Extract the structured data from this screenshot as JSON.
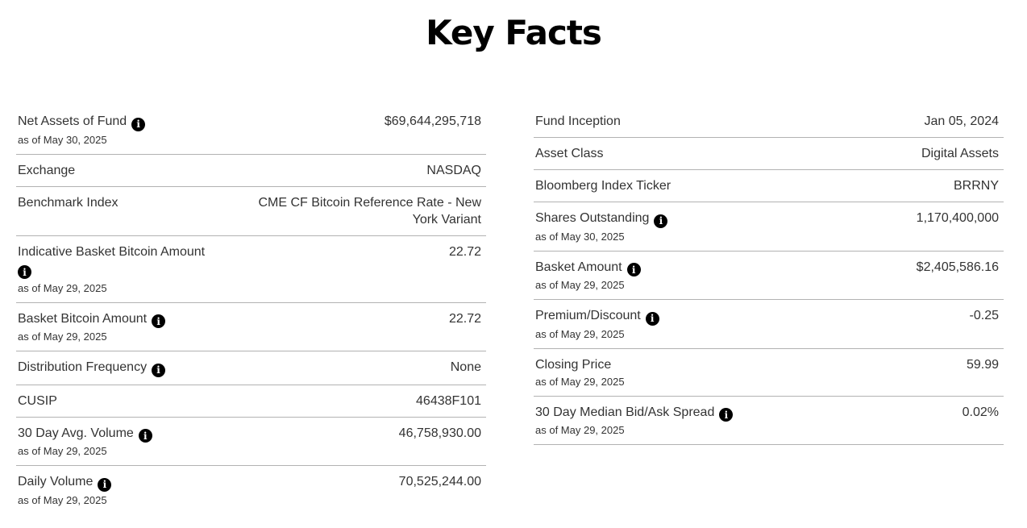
{
  "title": "Key Facts",
  "info_icon_glyph": "i",
  "colors": {
    "heading": "#000000",
    "text": "#333333",
    "divider": "#b2b2b2",
    "info_icon_bg": "#000000",
    "info_icon_fg": "#ffffff",
    "background": "#ffffff"
  },
  "columns": {
    "left": [
      {
        "label": "Net Assets of Fund",
        "info_icon": true,
        "icon_on_new_line": false,
        "as_of": "as of May 30, 2025",
        "value": "$69,644,295,718",
        "value_narrow": false,
        "bottom_divider": true
      },
      {
        "label": "Exchange",
        "info_icon": false,
        "icon_on_new_line": false,
        "as_of": null,
        "value": "NASDAQ",
        "value_narrow": false,
        "bottom_divider": true
      },
      {
        "label": "Benchmark Index",
        "info_icon": false,
        "icon_on_new_line": false,
        "as_of": null,
        "value": "CME CF Bitcoin Reference Rate - New York Variant",
        "value_narrow": true,
        "bottom_divider": true
      },
      {
        "label": "Indicative Basket Bitcoin Amount",
        "info_icon": true,
        "icon_on_new_line": true,
        "as_of": "as of May 29, 2025",
        "value": "22.72",
        "value_narrow": false,
        "bottom_divider": true
      },
      {
        "label": "Basket Bitcoin Amount",
        "info_icon": true,
        "icon_on_new_line": false,
        "as_of": "as of May 29, 2025",
        "value": "22.72",
        "value_narrow": false,
        "bottom_divider": true
      },
      {
        "label": "Distribution Frequency",
        "info_icon": true,
        "icon_on_new_line": false,
        "as_of": null,
        "value": "None",
        "value_narrow": false,
        "bottom_divider": true
      },
      {
        "label": "CUSIP",
        "info_icon": false,
        "icon_on_new_line": false,
        "as_of": null,
        "value": "46438F101",
        "value_narrow": false,
        "bottom_divider": true
      },
      {
        "label": "30 Day Avg. Volume",
        "info_icon": true,
        "icon_on_new_line": false,
        "as_of": "as of May 29, 2025",
        "value": "46,758,930.00",
        "value_narrow": false,
        "bottom_divider": true
      },
      {
        "label": "Daily Volume",
        "info_icon": true,
        "icon_on_new_line": false,
        "as_of": "as of May 29, 2025",
        "value": "70,525,244.00",
        "value_narrow": false,
        "bottom_divider": false
      }
    ],
    "right": [
      {
        "label": "Fund Inception",
        "info_icon": false,
        "icon_on_new_line": false,
        "as_of": null,
        "value": "Jan 05, 2024",
        "value_narrow": false,
        "bottom_divider": true
      },
      {
        "label": "Asset Class",
        "info_icon": false,
        "icon_on_new_line": false,
        "as_of": null,
        "value": "Digital Assets",
        "value_narrow": false,
        "bottom_divider": true
      },
      {
        "label": "Bloomberg Index Ticker",
        "info_icon": false,
        "icon_on_new_line": false,
        "as_of": null,
        "value": "BRRNY",
        "value_narrow": false,
        "bottom_divider": true
      },
      {
        "label": "Shares Outstanding",
        "info_icon": true,
        "icon_on_new_line": false,
        "as_of": "as of May 30, 2025",
        "value": "1,170,400,000",
        "value_narrow": false,
        "bottom_divider": true
      },
      {
        "label": "Basket Amount",
        "info_icon": true,
        "icon_on_new_line": false,
        "as_of": "as of May 29, 2025",
        "value": "$2,405,586.16",
        "value_narrow": false,
        "bottom_divider": true
      },
      {
        "label": "Premium/Discount",
        "info_icon": true,
        "icon_on_new_line": false,
        "as_of": "as of May 29, 2025",
        "value": "-0.25",
        "value_narrow": false,
        "bottom_divider": true
      },
      {
        "label": "Closing Price",
        "info_icon": false,
        "icon_on_new_line": false,
        "as_of": "as of May 29, 2025",
        "value": "59.99",
        "value_narrow": false,
        "bottom_divider": true
      },
      {
        "label": "30 Day Median Bid/Ask Spread",
        "info_icon": true,
        "icon_on_new_line": false,
        "as_of": "as of May 29, 2025",
        "value": "0.02%",
        "value_narrow": false,
        "bottom_divider": true
      }
    ]
  }
}
